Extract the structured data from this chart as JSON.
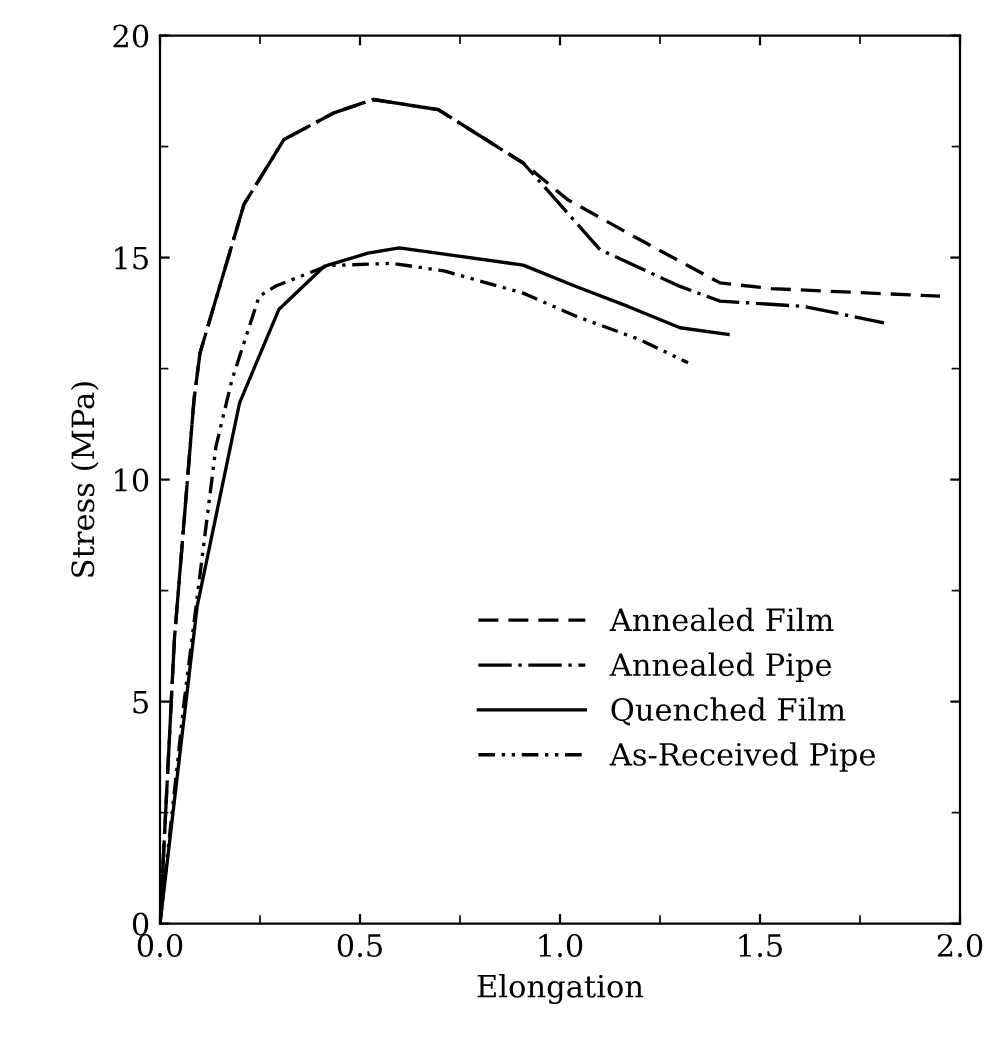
{
  "chart_data": {
    "type": "line",
    "xlabel": "Elongation",
    "ylabel": "Stress (MPa)",
    "xlim": [
      0.0,
      2.0
    ],
    "ylim": [
      0,
      20
    ],
    "xticks": [
      {
        "value": 0,
        "label": "0.0"
      },
      0.5,
      {
        "value": 1,
        "label": "1.0"
      },
      1.5,
      {
        "value": 2,
        "label": "2.0"
      }
    ],
    "yticks": [
      0,
      5,
      10,
      15,
      20
    ],
    "grid": false,
    "legend": "bottom right",
    "marker": "none",
    "series": [
      {
        "name": "Annealed Film",
        "color": "#000000",
        "line_style": "dashed",
        "x": [
          0,
          0.036,
          0.085,
          0.1,
          0.21,
          0.31,
          0.435,
          0.533,
          0.696,
          0.908,
          1.02,
          1.2,
          1.4,
          1.53,
          1.95
        ],
        "values": [
          0,
          6.4,
          11.8,
          12.85,
          16.2,
          17.66,
          18.26,
          18.56,
          18.33,
          17.13,
          16.3,
          15.4,
          14.43,
          14.3,
          14.13
        ]
      },
      {
        "name": "Annealed Pipe",
        "color": "#000000",
        "line_style": "dashdot",
        "x": [
          0,
          0.036,
          0.085,
          0.1,
          0.21,
          0.31,
          0.435,
          0.533,
          0.696,
          0.908,
          1.1,
          1.3,
          1.4,
          1.61,
          1.81
        ],
        "values": [
          0,
          6.4,
          11.8,
          12.85,
          16.2,
          17.66,
          18.26,
          18.56,
          18.33,
          17.13,
          15.18,
          14.35,
          14.02,
          13.9,
          13.53
        ]
      },
      {
        "name": "Quenched Film",
        "color": "#000000",
        "line_style": "solid",
        "x": [
          0,
          0.093,
          0.199,
          0.297,
          0.41,
          0.52,
          0.598,
          0.908,
          1.04,
          1.17,
          1.3,
          1.42
        ],
        "values": [
          0,
          7.15,
          11.73,
          13.83,
          14.8,
          15.1,
          15.22,
          14.83,
          14.35,
          13.9,
          13.42,
          13.27
        ]
      },
      {
        "name": "As-Received Pipe",
        "color": "#000000",
        "line_style": "dashdotdot",
        "x": [
          0,
          0.06,
          0.14,
          0.18,
          0.248,
          0.29,
          0.42,
          0.58,
          0.71,
          0.908,
          1.04,
          1.2,
          1.32
        ],
        "values": [
          0,
          4.97,
          10.75,
          12.25,
          14.13,
          14.36,
          14.82,
          14.87,
          14.7,
          14.2,
          13.68,
          13.15,
          12.63
        ]
      }
    ]
  }
}
